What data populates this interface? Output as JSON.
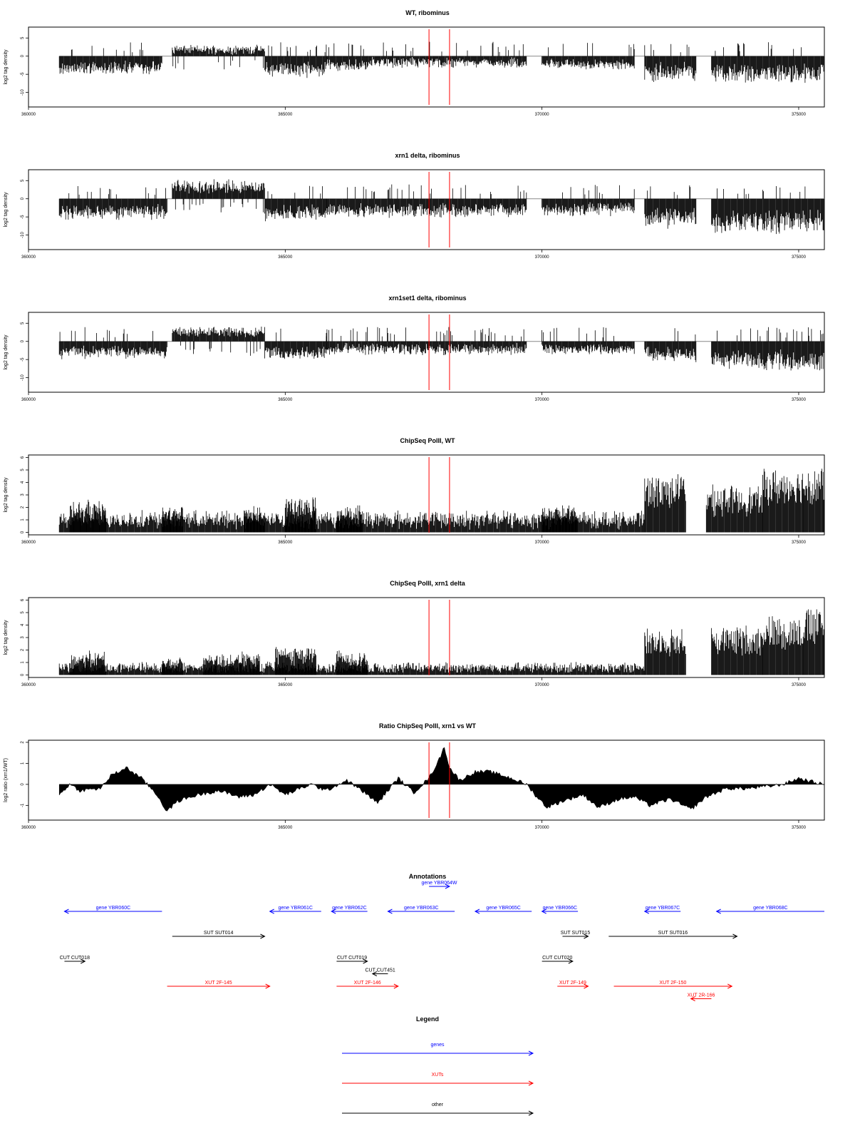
{
  "chart_data": [
    {
      "type": "bar",
      "title": "WT, ribominus",
      "ylabel": "log2 tag density",
      "xlim": [
        360000,
        375500
      ],
      "ylim": [
        -14,
        8
      ],
      "xticks": [
        "360000",
        "365000",
        "370000",
        "375000"
      ],
      "yticks": [
        "5",
        "0",
        "-5",
        "-10"
      ],
      "markers": [
        367800,
        368200
      ],
      "segments": [
        {
          "from": 360600,
          "to": 362600,
          "strand": "minus",
          "level": 4.5,
          "var": 2
        },
        {
          "from": 362800,
          "to": 364600,
          "strand": "plus",
          "level": 2.5,
          "var": 1.5
        },
        {
          "from": 364600,
          "to": 365800,
          "strand": "minus",
          "level": 5,
          "var": 2.5
        },
        {
          "from": 365800,
          "to": 366600,
          "strand": "minus",
          "level": 3.5,
          "var": 2
        },
        {
          "from": 366600,
          "to": 369700,
          "strand": "minus",
          "level": 2.5,
          "var": 2
        },
        {
          "from": 370000,
          "to": 371800,
          "strand": "minus",
          "level": 3,
          "var": 1.5
        },
        {
          "from": 372000,
          "to": 373000,
          "strand": "minus",
          "level": 6,
          "var": 3
        },
        {
          "from": 373300,
          "to": 375500,
          "strand": "minus",
          "level": 6.5,
          "var": 2.5
        }
      ]
    },
    {
      "type": "bar",
      "title": "xrn1 delta, ribominus",
      "ylabel": "log2 tag density",
      "xlim": [
        360000,
        375500
      ],
      "ylim": [
        -14,
        8
      ],
      "xticks": [
        "360000",
        "365000",
        "370000",
        "375000"
      ],
      "yticks": [
        "5",
        "0",
        "-5",
        "-10"
      ],
      "markers": [
        367800,
        368200
      ],
      "segments": [
        {
          "from": 360600,
          "to": 362700,
          "strand": "minus",
          "level": 5,
          "var": 2
        },
        {
          "from": 362800,
          "to": 364600,
          "strand": "plus",
          "level": 4.5,
          "var": 2
        },
        {
          "from": 364600,
          "to": 365800,
          "strand": "minus",
          "level": 5.5,
          "var": 2
        },
        {
          "from": 365800,
          "to": 369700,
          "strand": "minus",
          "level": 4.5,
          "var": 2
        },
        {
          "from": 370000,
          "to": 371800,
          "strand": "minus",
          "level": 4,
          "var": 2
        },
        {
          "from": 372000,
          "to": 373000,
          "strand": "minus",
          "level": 7,
          "var": 3
        },
        {
          "from": 373300,
          "to": 375500,
          "strand": "minus",
          "level": 9,
          "var": 2.5
        }
      ]
    },
    {
      "type": "bar",
      "title": "xrn1set1 delta, ribominus",
      "ylabel": "log2 tag density",
      "xlim": [
        360000,
        375500
      ],
      "ylim": [
        -14,
        8
      ],
      "xticks": [
        "360000",
        "365000",
        "370000",
        "375000"
      ],
      "yticks": [
        "5",
        "0",
        "-5",
        "-10"
      ],
      "markers": [
        367800,
        368200
      ],
      "segments": [
        {
          "from": 360600,
          "to": 362700,
          "strand": "minus",
          "level": 4,
          "var": 2
        },
        {
          "from": 362800,
          "to": 364600,
          "strand": "plus",
          "level": 3.5,
          "var": 1.5
        },
        {
          "from": 364600,
          "to": 365800,
          "strand": "minus",
          "level": 4.5,
          "var": 2
        },
        {
          "from": 365800,
          "to": 369700,
          "strand": "minus",
          "level": 3,
          "var": 2
        },
        {
          "from": 370000,
          "to": 371800,
          "strand": "minus",
          "level": 3,
          "var": 1.5
        },
        {
          "from": 372000,
          "to": 373000,
          "strand": "minus",
          "level": 5,
          "var": 2.5
        },
        {
          "from": 373300,
          "to": 375500,
          "strand": "minus",
          "level": 7.5,
          "var": 2.5
        }
      ]
    },
    {
      "type": "bar",
      "title": "ChipSeq PolII, WT",
      "ylabel": "log2 tag density",
      "xlim": [
        360000,
        375500
      ],
      "ylim": [
        -0.2,
        6.2
      ],
      "xticks": [
        "360000",
        "365000",
        "370000",
        "375000"
      ],
      "yticks": [
        "6",
        "5",
        "4",
        "3",
        "2",
        "1",
        "0"
      ],
      "markers": [
        367800,
        368200
      ],
      "segments": [
        {
          "from": 360600,
          "to": 372000,
          "strand": "plus",
          "level": 1.4,
          "var": 0.9
        },
        {
          "from": 360800,
          "to": 361500,
          "strand": "plus",
          "level": 2.3,
          "var": 0.8
        },
        {
          "from": 362600,
          "to": 363000,
          "strand": "plus",
          "level": 2,
          "var": 0.7
        },
        {
          "from": 364200,
          "to": 364600,
          "strand": "plus",
          "level": 2,
          "var": 0.6
        },
        {
          "from": 365000,
          "to": 365600,
          "strand": "plus",
          "level": 2.6,
          "var": 0.8
        },
        {
          "from": 366000,
          "to": 366500,
          "strand": "plus",
          "level": 2,
          "var": 0.6
        },
        {
          "from": 370000,
          "to": 370700,
          "strand": "plus",
          "level": 2,
          "var": 0.7
        },
        {
          "from": 372000,
          "to": 372800,
          "strand": "plus",
          "level": 4.6,
          "var": 0.5
        },
        {
          "from": 373200,
          "to": 374300,
          "strand": "plus",
          "level": 3.5,
          "var": 0.8
        },
        {
          "from": 374300,
          "to": 375100,
          "strand": "plus",
          "level": 5,
          "var": 0.4
        },
        {
          "from": 375100,
          "to": 375500,
          "strand": "plus",
          "level": 5.2,
          "var": 0.4
        }
      ]
    },
    {
      "type": "bar",
      "title": "ChipSeq PolII, xrn1 delta",
      "ylabel": "log2 tag density",
      "xlim": [
        360000,
        375500
      ],
      "ylim": [
        -0.2,
        6.2
      ],
      "xticks": [
        "360000",
        "365000",
        "370000",
        "375000"
      ],
      "yticks": [
        "6",
        "5",
        "4",
        "3",
        "2",
        "1",
        "0"
      ],
      "markers": [
        367800,
        368200
      ],
      "segments": [
        {
          "from": 360600,
          "to": 372000,
          "strand": "plus",
          "level": 0.8,
          "var": 0.6
        },
        {
          "from": 360800,
          "to": 361500,
          "strand": "plus",
          "level": 1.7,
          "var": 0.6
        },
        {
          "from": 362600,
          "to": 363000,
          "strand": "plus",
          "level": 1.3,
          "var": 0.5
        },
        {
          "from": 363400,
          "to": 364500,
          "strand": "plus",
          "level": 1.6,
          "var": 0.6
        },
        {
          "from": 364800,
          "to": 365600,
          "strand": "plus",
          "level": 2.2,
          "var": 0.6
        },
        {
          "from": 366000,
          "to": 366600,
          "strand": "plus",
          "level": 1.8,
          "var": 0.5
        },
        {
          "from": 372000,
          "to": 372800,
          "strand": "plus",
          "level": 3.6,
          "var": 0.5
        },
        {
          "from": 373300,
          "to": 374300,
          "strand": "plus",
          "level": 3.8,
          "var": 0.7
        },
        {
          "from": 374300,
          "to": 375100,
          "strand": "plus",
          "level": 4.7,
          "var": 0.4
        },
        {
          "from": 375100,
          "to": 375500,
          "strand": "plus",
          "level": 5.3,
          "var": 0.4
        }
      ]
    },
    {
      "type": "area",
      "title": "Ratio ChipSeq PolII, xrn1 vs WT",
      "ylabel": "log2 ratio (xrn1/WT)",
      "xlim": [
        360000,
        375500
      ],
      "ylim": [
        -1.7,
        2.1
      ],
      "xticks": [
        "360000",
        "365000",
        "370000",
        "375000"
      ],
      "yticks": [
        "2",
        "1",
        "0",
        "-1"
      ],
      "markers": [
        367800,
        368200
      ],
      "points": [
        [
          360600,
          -0.5
        ],
        [
          360800,
          0.0
        ],
        [
          361000,
          -0.3
        ],
        [
          361400,
          -0.2
        ],
        [
          361600,
          0.4
        ],
        [
          361900,
          0.8
        ],
        [
          362200,
          0.3
        ],
        [
          362500,
          -0.5
        ],
        [
          362700,
          -1.3
        ],
        [
          362900,
          -0.8
        ],
        [
          363300,
          -0.5
        ],
        [
          363700,
          -0.3
        ],
        [
          364100,
          -0.6
        ],
        [
          364400,
          -0.5
        ],
        [
          364700,
          0.0
        ],
        [
          365000,
          -0.5
        ],
        [
          365500,
          0.0
        ],
        [
          365800,
          -0.3
        ],
        [
          366200,
          0.2
        ],
        [
          366600,
          -0.5
        ],
        [
          366800,
          -0.9
        ],
        [
          367000,
          -0.3
        ],
        [
          367200,
          0.3
        ],
        [
          367500,
          -0.4
        ],
        [
          367800,
          0.3
        ],
        [
          368000,
          1.2
        ],
        [
          368100,
          1.8
        ],
        [
          368200,
          0.8
        ],
        [
          368400,
          0.2
        ],
        [
          368700,
          0.6
        ],
        [
          369000,
          0.6
        ],
        [
          369400,
          0.3
        ],
        [
          369700,
          0.0
        ],
        [
          369900,
          -0.6
        ],
        [
          370100,
          -1.1
        ],
        [
          370400,
          -0.8
        ],
        [
          370800,
          -0.5
        ],
        [
          371100,
          -1.1
        ],
        [
          371500,
          -0.7
        ],
        [
          371800,
          -0.6
        ],
        [
          372100,
          -1.0
        ],
        [
          372500,
          -0.7
        ],
        [
          372900,
          -1.2
        ],
        [
          373200,
          -0.6
        ],
        [
          373600,
          -0.2
        ],
        [
          374000,
          -0.2
        ],
        [
          374400,
          -0.1
        ],
        [
          374700,
          0.0
        ],
        [
          375000,
          0.3
        ],
        [
          375300,
          0.1
        ],
        [
          375500,
          0.0
        ]
      ]
    }
  ],
  "annotations": {
    "title": "Annotations",
    "xlim": [
      360000,
      375500
    ],
    "colors": {
      "genes": "#0000ff",
      "XUTs": "#ff0000",
      "other": "#000000"
    },
    "features": [
      {
        "label": "gene YBR060C",
        "from": 360700,
        "to": 362600,
        "dir": "left",
        "row": 0,
        "color": "#0000ff"
      },
      {
        "label": "gene YBR061C",
        "from": 364700,
        "to": 365700,
        "dir": "left",
        "row": 0,
        "color": "#0000ff"
      },
      {
        "label": "gene YBR062C",
        "from": 365900,
        "to": 366600,
        "dir": "left",
        "row": 0,
        "color": "#0000ff"
      },
      {
        "label": "gene YBR063C",
        "from": 367000,
        "to": 368300,
        "dir": "left",
        "row": 0,
        "color": "#0000ff"
      },
      {
        "label": "gene YBR064W",
        "from": 367800,
        "to": 368200,
        "dir": "right",
        "row": -1,
        "color": "#0000ff"
      },
      {
        "label": "gene YBR065C",
        "from": 368700,
        "to": 369800,
        "dir": "left",
        "row": 0,
        "color": "#0000ff"
      },
      {
        "label": "gene YBR066C",
        "from": 370000,
        "to": 370700,
        "dir": "left",
        "row": 0,
        "color": "#0000ff"
      },
      {
        "label": "gene YBR067C",
        "from": 372000,
        "to": 372700,
        "dir": "left",
        "row": 0,
        "color": "#0000ff"
      },
      {
        "label": "gene YBR068C",
        "from": 373400,
        "to": 375500,
        "dir": "left",
        "row": 0,
        "color": "#0000ff"
      },
      {
        "label": "SUT SUT014",
        "from": 362800,
        "to": 364600,
        "dir": "right",
        "row": 1,
        "color": "#000000"
      },
      {
        "label": "SUT SUT015",
        "from": 370400,
        "to": 370900,
        "dir": "right",
        "row": 1,
        "color": "#000000"
      },
      {
        "label": "SUT SUT016",
        "from": 371300,
        "to": 373800,
        "dir": "right",
        "row": 1,
        "color": "#000000"
      },
      {
        "label": "CUT CUT018",
        "from": 360700,
        "to": 361100,
        "dir": "right",
        "row": 2,
        "color": "#000000"
      },
      {
        "label": "CUT CUT019",
        "from": 366000,
        "to": 366600,
        "dir": "right",
        "row": 2,
        "color": "#000000"
      },
      {
        "label": "CUT CUT451",
        "from": 366700,
        "to": 367000,
        "dir": "left",
        "row": 2.5,
        "color": "#000000"
      },
      {
        "label": "CUT CUT020",
        "from": 370000,
        "to": 370600,
        "dir": "right",
        "row": 2,
        "color": "#000000"
      },
      {
        "label": "XUT 2F-145",
        "from": 362700,
        "to": 364700,
        "dir": "right",
        "row": 3,
        "color": "#ff0000"
      },
      {
        "label": "XUT 2F-146",
        "from": 366000,
        "to": 367200,
        "dir": "right",
        "row": 3,
        "color": "#ff0000"
      },
      {
        "label": "XUT 2F-149",
        "from": 370300,
        "to": 370900,
        "dir": "right",
        "row": 3,
        "color": "#ff0000"
      },
      {
        "label": "XUT 2F-150",
        "from": 371400,
        "to": 373700,
        "dir": "right",
        "row": 3,
        "color": "#ff0000"
      },
      {
        "label": "XUT 2R-166",
        "from": 372900,
        "to": 373300,
        "dir": "left",
        "row": 3.5,
        "color": "#ff0000"
      }
    ]
  },
  "legend": {
    "title": "Legend",
    "items": [
      {
        "label": "genes",
        "color": "#0000ff"
      },
      {
        "label": "XUTs",
        "color": "#ff0000"
      },
      {
        "label": "other",
        "color": "#000000"
      }
    ]
  }
}
